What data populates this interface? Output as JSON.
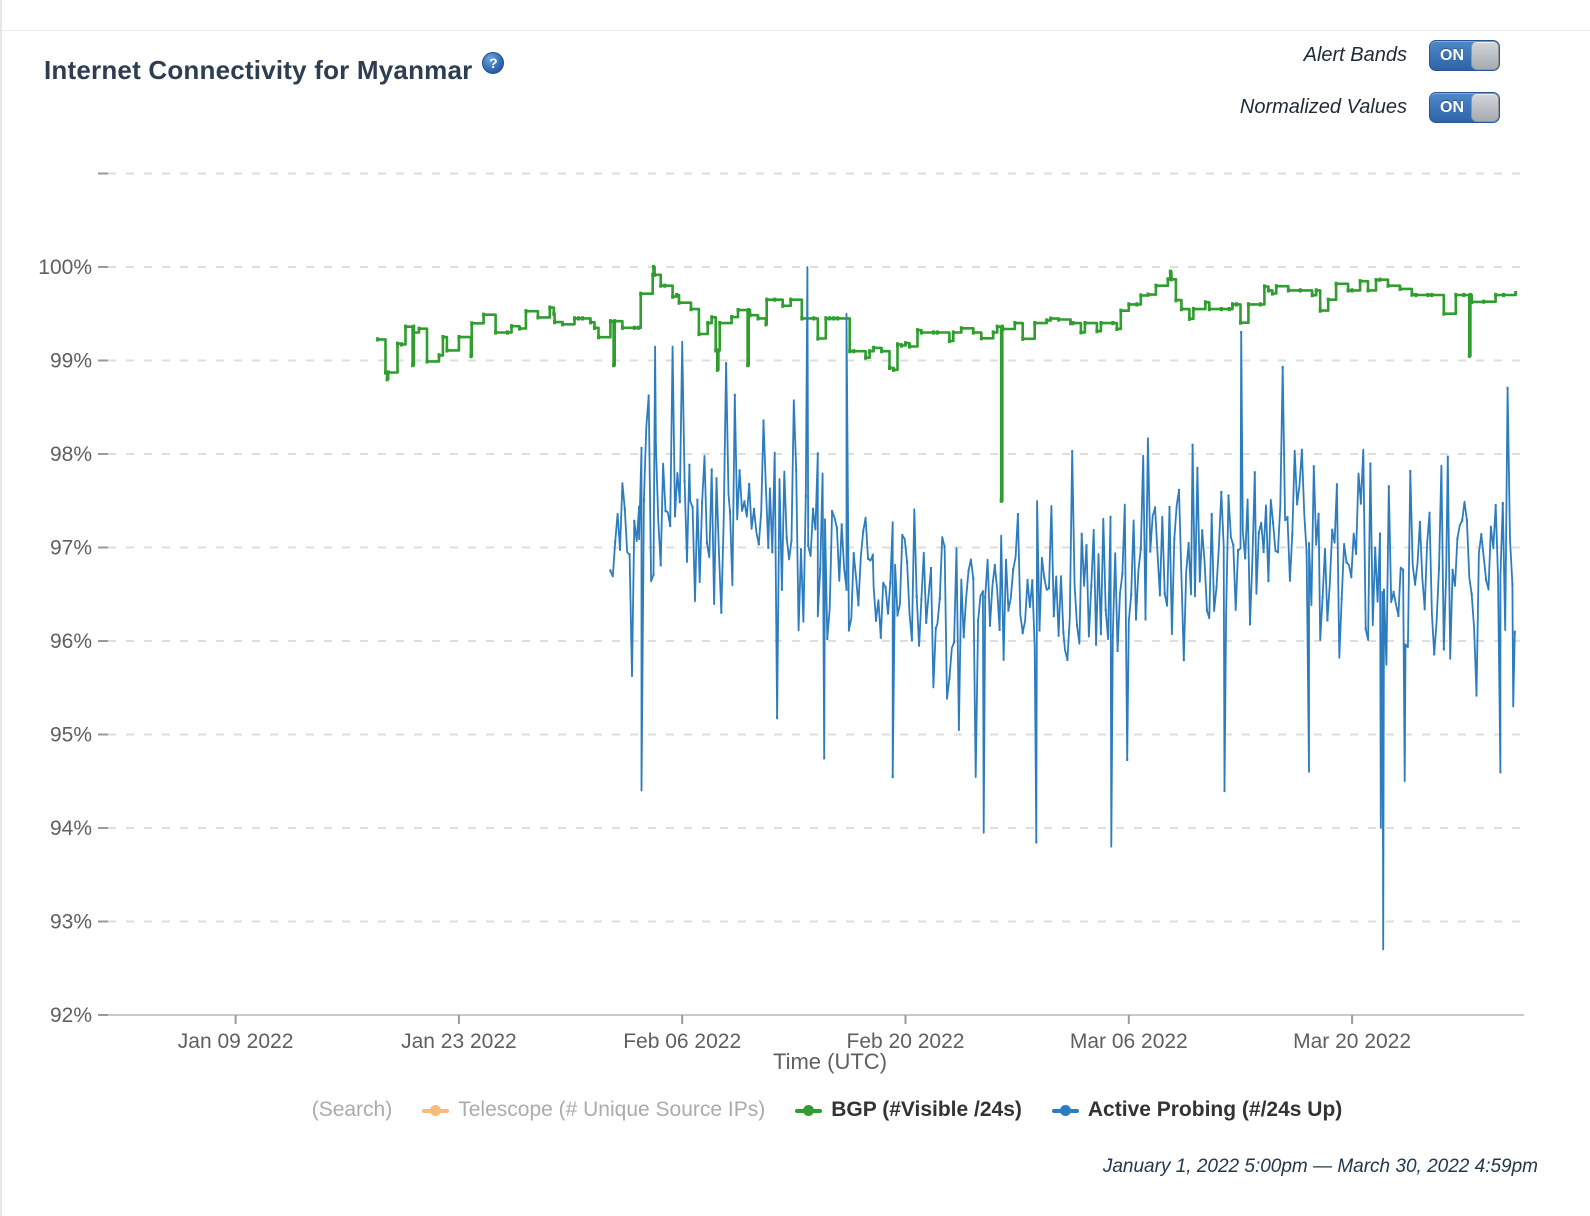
{
  "header": {
    "title": "Internet Connectivity for Myanmar",
    "help_icon": "?"
  },
  "controls": {
    "alert_bands_label": "Alert Bands",
    "alert_bands_state": "ON",
    "normalized_values_label": "Normalized Values",
    "normalized_values_state": "ON"
  },
  "legend": {
    "search": {
      "label": "(Search)",
      "color": "#ababab",
      "active": false
    },
    "telescope": {
      "label": "Telescope (# Unique Source IPs)",
      "color": "#f5bb80",
      "active": false
    },
    "bgp": {
      "label": "BGP (#Visible /24s)",
      "color": "#2f9e2f",
      "active": true
    },
    "probing": {
      "label": "Active Probing (#/24s Up)",
      "color": "#2d7dbe",
      "active": true
    }
  },
  "footer": {
    "date_range": "January 1, 2022 5:00pm — March 30, 2022 4:59pm"
  },
  "chart_data": {
    "type": "line",
    "title": "Internet Connectivity for Myanmar",
    "xlabel": "Time (UTC)",
    "ylabel": "",
    "ylim": [
      92,
      101
    ],
    "x_range_days": [
      0,
      88.3
    ],
    "day_zero": "January 1, 2022",
    "grid": "dashed-horizontal",
    "x_axis": {
      "label": "Time (UTC)",
      "ticks": [
        {
          "day": 8,
          "label": "Jan 09 2022"
        },
        {
          "day": 22,
          "label": "Jan 23 2022"
        },
        {
          "day": 36,
          "label": "Feb 06 2022"
        },
        {
          "day": 50,
          "label": "Feb 20 2022"
        },
        {
          "day": 64,
          "label": "Mar 06 2022"
        },
        {
          "day": 78,
          "label": "Mar 20 2022"
        }
      ]
    },
    "y_axis": {
      "unit": "%",
      "grid_values": [
        101,
        100,
        99,
        98,
        97,
        96,
        95,
        94,
        93,
        92
      ],
      "ticks": [
        {
          "value": 100,
          "label": "100%"
        },
        {
          "value": 99,
          "label": "99%"
        },
        {
          "value": 98,
          "label": "98%"
        },
        {
          "value": 97,
          "label": "97%"
        },
        {
          "value": 96,
          "label": "96%"
        },
        {
          "value": 95,
          "label": "95%"
        },
        {
          "value": 94,
          "label": "94%"
        },
        {
          "value": 93,
          "label": "93%"
        },
        {
          "value": 92,
          "label": "92%"
        }
      ]
    },
    "series": [
      {
        "id": "telescope",
        "name": "Telescope (# Unique Source IPs)",
        "color": "#f5bb80",
        "visible_points": false
      },
      {
        "id": "bgp",
        "name": "BGP (#Visible /24s)",
        "color": "#2f9e2f",
        "style": "step",
        "seed": 11,
        "range_days": [
          16.9,
          88.3
        ],
        "value_range": [
          97.5,
          100
        ],
        "segment_columns": [
          "from_day",
          "to_day",
          "base_pct",
          "jitter",
          "dip_depth",
          "dip_prob"
        ],
        "segments": [
          [
            16.9,
            19.5,
            99.3,
            0.15,
            0.5,
            0.08
          ],
          [
            19.5,
            22.8,
            99.25,
            0.15,
            0.3,
            0.15
          ],
          [
            22.8,
            24.3,
            99.55,
            0.12,
            0.25,
            0.1
          ],
          [
            24.3,
            26.2,
            99.3,
            0.12,
            0.3,
            0.12
          ],
          [
            26.2,
            28.0,
            99.5,
            0.12,
            0.2,
            0.12
          ],
          [
            28.0,
            30.5,
            99.45,
            0.12,
            0.35,
            0.1
          ],
          [
            30.5,
            33.4,
            99.35,
            0.18,
            0.4,
            0.1
          ],
          [
            33.4,
            35.8,
            99.8,
            0.15,
            0.25,
            0.1
          ],
          [
            35.8,
            37.6,
            99.55,
            0.12,
            0.3,
            0.1
          ],
          [
            37.6,
            39.5,
            99.4,
            0.15,
            0.55,
            0.07
          ],
          [
            39.5,
            41.3,
            99.45,
            0.12,
            0.5,
            0.07
          ],
          [
            41.3,
            43.5,
            99.65,
            0.1,
            0.2,
            0.1
          ],
          [
            43.5,
            46.5,
            99.45,
            0.1,
            0.25,
            0.12
          ],
          [
            46.5,
            49.5,
            99.1,
            0.12,
            0.2,
            0.15
          ],
          [
            49.5,
            55.9,
            99.3,
            0.08,
            0.18,
            0.22
          ],
          [
            56.1,
            60.5,
            99.4,
            0.08,
            0.2,
            0.15
          ],
          [
            60.5,
            63.5,
            99.4,
            0.1,
            0.18,
            0.15
          ],
          [
            63.5,
            65.2,
            99.6,
            0.12,
            0.2,
            0.1
          ],
          [
            65.2,
            67.3,
            99.8,
            0.1,
            0.2,
            0.1
          ],
          [
            67.3,
            70.5,
            99.55,
            0.12,
            0.3,
            0.12
          ],
          [
            70.5,
            72.5,
            99.6,
            0.12,
            0.35,
            0.1
          ],
          [
            72.5,
            78.5,
            99.75,
            0.1,
            0.3,
            0.08
          ],
          [
            78.5,
            82.0,
            99.8,
            0.1,
            0.35,
            0.08
          ],
          [
            82.0,
            85.2,
            99.7,
            0.12,
            0.25,
            0.1
          ],
          [
            85.5,
            88.3,
            99.7,
            0.1,
            0.2,
            0.1
          ]
        ],
        "anomaly_columns": [
          "day",
          "pct"
        ],
        "anomalies": [
          [
            17.5,
            98.8
          ],
          [
            19.1,
            98.95
          ],
          [
            31.7,
            98.95
          ],
          [
            34.2,
            100.0
          ],
          [
            38.2,
            98.9
          ],
          [
            40.1,
            98.95
          ],
          [
            56.0,
            97.5
          ],
          [
            66.6,
            99.95
          ],
          [
            85.35,
            99.05
          ]
        ]
      },
      {
        "id": "probing",
        "name": "Active Probing (#/24s Up)",
        "color": "#2d7dbe",
        "style": "linear",
        "seed": 97,
        "range_days": [
          31.5,
          88.3
        ],
        "value_range": [
          92.7,
          100
        ],
        "segment_columns": [
          "from_day",
          "to_day",
          "mean_pct",
          "amp",
          "deep_dip_prob",
          "deep_dip_amp",
          "spike_prob",
          "spike_amp"
        ],
        "segments": [
          [
            31.5,
            33.3,
            97.4,
            1.0,
            0.05,
            1.2,
            0.07,
            1.2
          ],
          [
            33.3,
            36.5,
            97.5,
            1.2,
            0.06,
            1.4,
            0.08,
            1.4
          ],
          [
            36.5,
            39.0,
            97.2,
            1.1,
            0.06,
            1.2,
            0.07,
            1.3
          ],
          [
            39.0,
            41.5,
            97.4,
            1.1,
            0.05,
            1.2,
            0.07,
            1.2
          ],
          [
            41.5,
            44.5,
            97.1,
            1.2,
            0.07,
            1.4,
            0.07,
            1.4
          ],
          [
            44.5,
            48.0,
            96.8,
            1.1,
            0.08,
            1.3,
            0.05,
            1.2
          ],
          [
            48.0,
            52.0,
            96.5,
            1.0,
            0.08,
            1.2,
            0.05,
            1.2
          ],
          [
            52.0,
            56.0,
            96.4,
            1.0,
            0.08,
            1.2,
            0.05,
            1.2
          ],
          [
            56.0,
            60.0,
            96.6,
            1.0,
            0.07,
            1.2,
            0.05,
            1.2
          ],
          [
            60.0,
            64.0,
            96.7,
            1.1,
            0.07,
            1.3,
            0.05,
            1.3
          ],
          [
            64.0,
            68.0,
            96.8,
            1.1,
            0.06,
            1.2,
            0.05,
            1.3
          ],
          [
            68.0,
            72.0,
            96.9,
            1.1,
            0.06,
            1.2,
            0.05,
            1.2
          ],
          [
            72.0,
            76.0,
            97.1,
            1.1,
            0.05,
            1.2,
            0.05,
            1.2
          ],
          [
            76.0,
            80.0,
            96.9,
            1.2,
            0.07,
            1.3,
            0.05,
            1.3
          ],
          [
            80.0,
            84.0,
            96.6,
            1.1,
            0.07,
            1.3,
            0.05,
            1.3
          ],
          [
            84.0,
            88.3,
            96.8,
            1.2,
            0.07,
            1.4,
            0.05,
            1.4
          ]
        ],
        "anomaly_columns": [
          "day",
          "pct"
        ],
        "anomalies": [
          [
            33.45,
            94.4
          ],
          [
            34.3,
            99.15
          ],
          [
            43.85,
            100.0
          ],
          [
            44.9,
            94.75
          ],
          [
            46.3,
            99.5
          ],
          [
            49.2,
            94.55
          ],
          [
            54.9,
            93.95
          ],
          [
            58.2,
            93.85
          ],
          [
            62.9,
            93.8
          ],
          [
            70.0,
            94.4
          ],
          [
            71.05,
            99.3
          ],
          [
            75.3,
            94.6
          ],
          [
            79.8,
            94.0
          ],
          [
            79.95,
            92.7
          ],
          [
            81.3,
            94.5
          ],
          [
            87.3,
            94.6
          ],
          [
            88.1,
            95.3
          ]
        ]
      }
    ]
  }
}
